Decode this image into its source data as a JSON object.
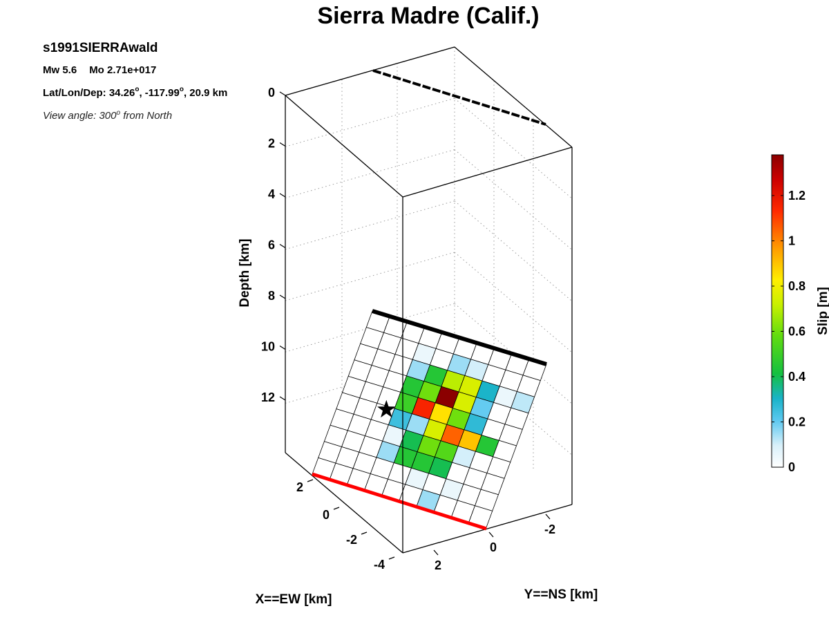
{
  "chart_data": {
    "type": "heatmap",
    "title": "Sierra Madre (Calif.)",
    "event_id": "s1991SIERRAwald",
    "info": {
      "mw_label": "Mw 5.6",
      "mo_label": "Mo 2.71e+017",
      "latlondep_prefix": "Lat/Lon/Dep: 34.26",
      "lat_sep": ", -117.99",
      "latlondep_suffix": ", 20.9 km",
      "degree_mark": "o",
      "view_prefix": "View angle: 300",
      "view_suffix": " from North"
    },
    "axes": {
      "x_label": "X==EW [km]",
      "y_label": "Y==NS [km]",
      "z_label": "Depth [km]",
      "z_ticks": [
        "0",
        "2",
        "4",
        "6",
        "8",
        "10",
        "12"
      ],
      "x_ticks": [
        "2",
        "0",
        "-2",
        "-4"
      ],
      "y_ticks": [
        "2",
        "0",
        "-2"
      ]
    },
    "colorbar": {
      "label": "Slip [m]",
      "range": [
        0,
        1.38
      ],
      "ticks": [
        "0",
        "0.2",
        "0.4",
        "0.6",
        "0.8",
        "1",
        "1.2"
      ],
      "tick_values": [
        0,
        0.2,
        0.4,
        0.6,
        0.8,
        1.0,
        1.2
      ],
      "colormap": "white-blue-green-yellow-red-darkred"
    },
    "slip_grid": {
      "rows": 10,
      "cols": 10,
      "values": [
        [
          0.0,
          0.0,
          0.0,
          0.0,
          0.0,
          0.0,
          0.0,
          0.0,
          0.0,
          0.0
        ],
        [
          0.0,
          0.0,
          0.0,
          0.05,
          0.0,
          0.15,
          0.1,
          0.0,
          0.0,
          0.0
        ],
        [
          0.0,
          0.0,
          0.0,
          0.15,
          0.45,
          0.7,
          0.75,
          0.3,
          0.05,
          0.12
        ],
        [
          0.0,
          0.0,
          0.0,
          0.45,
          0.6,
          1.38,
          0.75,
          0.2,
          0.0,
          0.0
        ],
        [
          0.0,
          0.0,
          0.0,
          0.5,
          1.15,
          0.85,
          0.6,
          0.27,
          0.0,
          0.0
        ],
        [
          0.0,
          0.0,
          0.0,
          0.25,
          0.15,
          0.75,
          1.05,
          0.9,
          0.45,
          0.0
        ],
        [
          0.0,
          0.0,
          0.0,
          0.05,
          0.4,
          0.6,
          0.55,
          0.1,
          0.0,
          0.0
        ],
        [
          0.0,
          0.0,
          0.0,
          0.15,
          0.45,
          0.45,
          0.4,
          0.0,
          0.0,
          0.0
        ],
        [
          0.0,
          0.0,
          0.0,
          0.0,
          0.0,
          0.05,
          0.0,
          0.05,
          0.0,
          0.0
        ],
        [
          0.0,
          0.0,
          0.0,
          0.0,
          0.0,
          0.0,
          0.15,
          0.0,
          0.0,
          0.0
        ]
      ]
    },
    "hypocenter": {
      "row": 5.2,
      "col": 2.6
    },
    "colors": {
      "fault_top": "#000000",
      "fault_surface_trace": "#ff0000",
      "hypocenter": "#000000"
    }
  }
}
